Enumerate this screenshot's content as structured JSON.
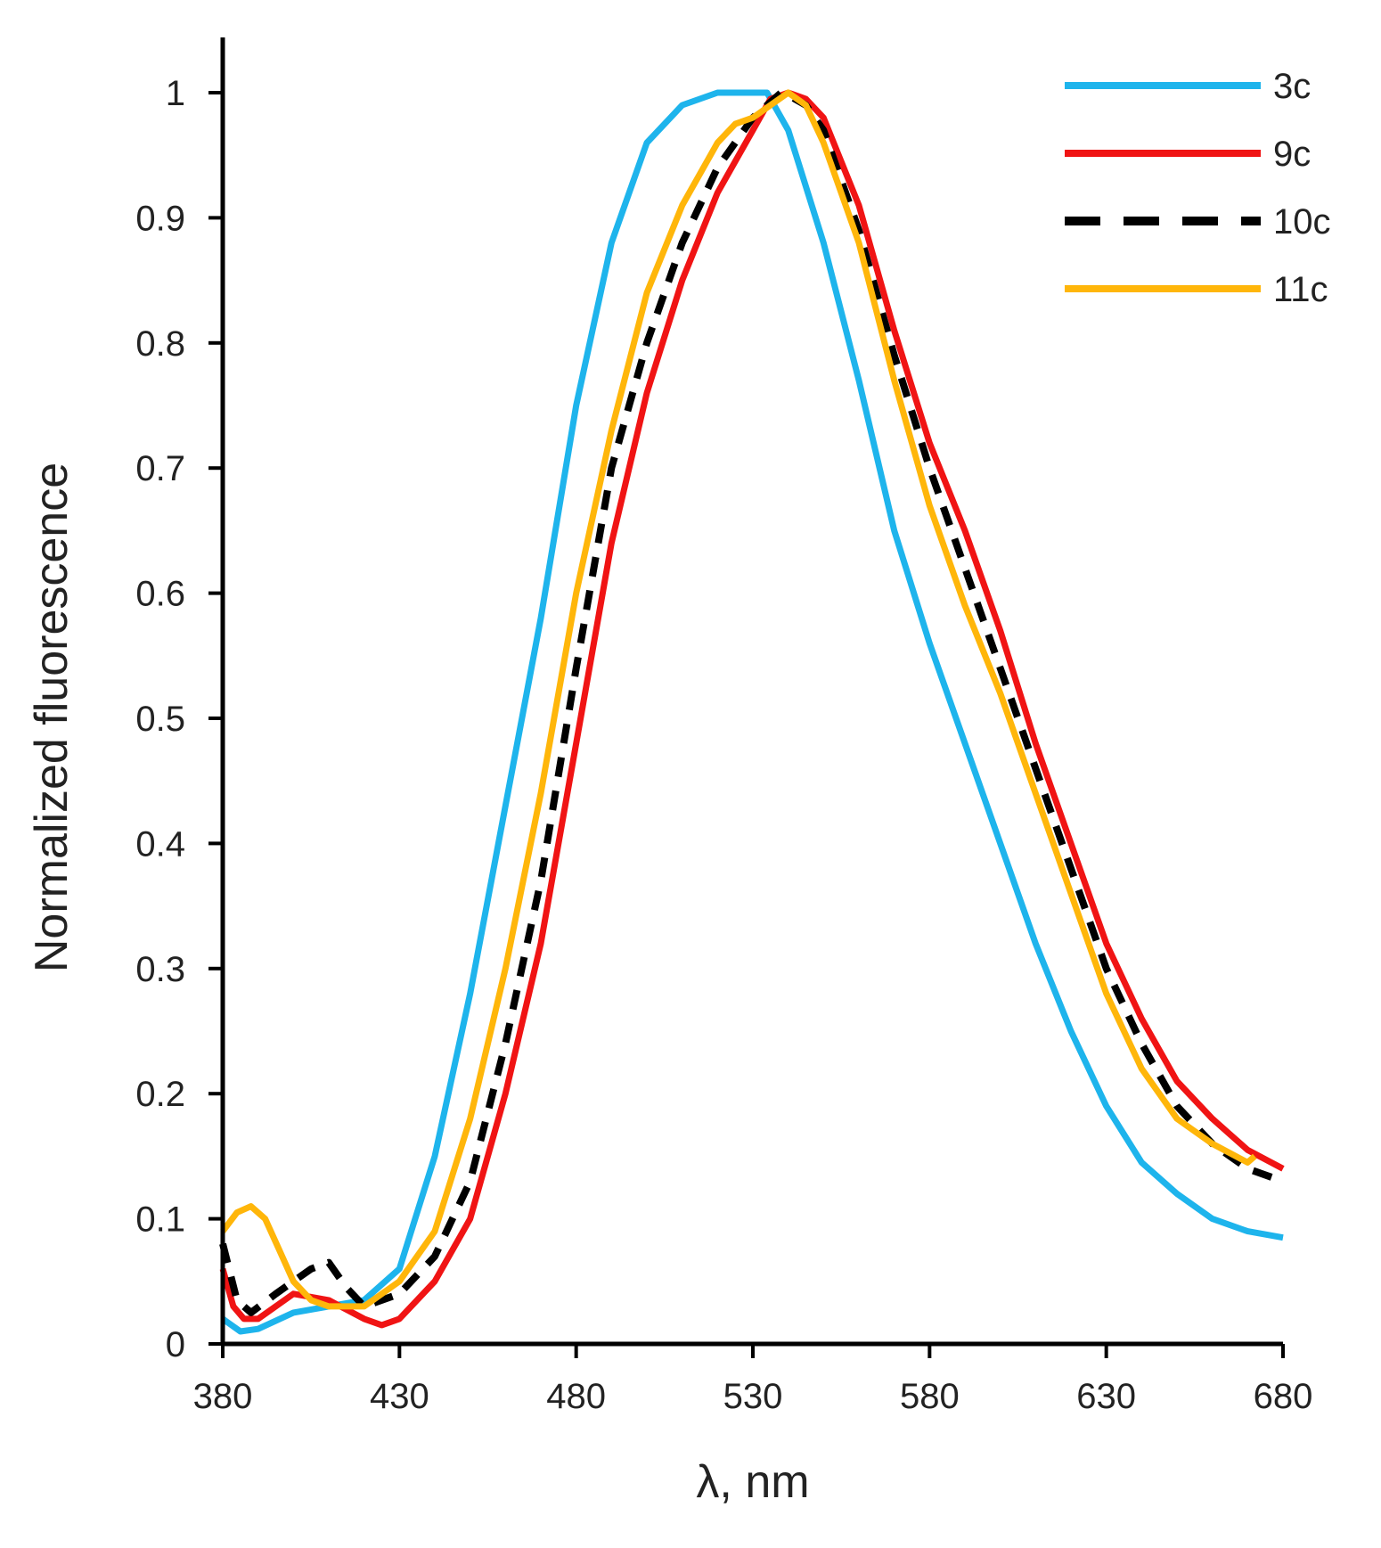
{
  "chart_data": {
    "type": "line",
    "title": "",
    "xlabel": "λ, nm",
    "ylabel": "Normalized fluorescence",
    "xlim": [
      380,
      680
    ],
    "ylim": [
      0,
      1.05
    ],
    "x_ticks": [
      380,
      430,
      480,
      530,
      580,
      630,
      680
    ],
    "x_tick_labels": [
      "380",
      "430",
      "480",
      "530",
      "580",
      "630",
      "680"
    ],
    "y_ticks": [
      0,
      0.1,
      0.2,
      0.3,
      0.4,
      0.5,
      0.6,
      0.7,
      0.8,
      0.9,
      1
    ],
    "y_tick_labels": [
      "0",
      "0.1",
      "0.2",
      "0.3",
      "0.4",
      "0.5",
      "0.6",
      "0.7",
      "0.8",
      "0.9",
      "1"
    ],
    "grid": false,
    "legend_position": "top-right",
    "series": [
      {
        "name": "3c",
        "color": "#1EB4EC",
        "dash": "solid",
        "x": [
          380,
          385,
          390,
          400,
          410,
          420,
          430,
          440,
          450,
          460,
          470,
          480,
          490,
          500,
          510,
          520,
          530,
          534,
          540,
          550,
          560,
          570,
          580,
          590,
          600,
          610,
          620,
          630,
          640,
          650,
          660,
          670,
          680
        ],
        "y": [
          0.02,
          0.01,
          0.012,
          0.025,
          0.03,
          0.035,
          0.06,
          0.15,
          0.28,
          0.43,
          0.58,
          0.75,
          0.88,
          0.96,
          0.99,
          1.0,
          1.0,
          1.0,
          0.97,
          0.88,
          0.77,
          0.65,
          0.56,
          0.48,
          0.4,
          0.32,
          0.25,
          0.19,
          0.145,
          0.12,
          0.1,
          0.09,
          0.085
        ]
      },
      {
        "name": "9c",
        "color": "#F01414",
        "dash": "solid",
        "x": [
          380,
          383,
          386,
          390,
          400,
          410,
          420,
          425,
          430,
          440,
          450,
          460,
          470,
          480,
          490,
          500,
          510,
          520,
          530,
          535,
          540,
          545,
          550,
          560,
          570,
          580,
          590,
          600,
          610,
          620,
          630,
          640,
          650,
          660,
          670,
          680
        ],
        "y": [
          0.06,
          0.03,
          0.02,
          0.02,
          0.04,
          0.035,
          0.02,
          0.015,
          0.02,
          0.05,
          0.1,
          0.2,
          0.32,
          0.48,
          0.64,
          0.76,
          0.85,
          0.92,
          0.97,
          0.995,
          1.0,
          0.995,
          0.98,
          0.91,
          0.81,
          0.72,
          0.65,
          0.57,
          0.48,
          0.4,
          0.32,
          0.26,
          0.21,
          0.18,
          0.155,
          0.14
        ]
      },
      {
        "name": "10c",
        "color": "#000000",
        "dash": "dashed",
        "x": [
          380,
          384,
          388,
          395,
          405,
          410,
          415,
          420,
          430,
          440,
          450,
          460,
          470,
          480,
          490,
          500,
          510,
          520,
          530,
          538,
          540,
          545,
          550,
          560,
          570,
          580,
          590,
          600,
          610,
          620,
          630,
          640,
          650,
          660,
          670,
          680
        ],
        "y": [
          0.08,
          0.035,
          0.025,
          0.04,
          0.06,
          0.065,
          0.045,
          0.03,
          0.04,
          0.07,
          0.13,
          0.24,
          0.37,
          0.54,
          0.7,
          0.8,
          0.88,
          0.94,
          0.98,
          1.0,
          0.998,
          0.99,
          0.97,
          0.89,
          0.79,
          0.7,
          0.62,
          0.54,
          0.46,
          0.38,
          0.3,
          0.24,
          0.19,
          0.16,
          0.14,
          0.13
        ]
      },
      {
        "name": "11c",
        "color": "#FFB60A",
        "dash": "solid",
        "x": [
          380,
          384,
          388,
          392,
          396,
          400,
          405,
          410,
          420,
          430,
          440,
          450,
          460,
          470,
          480,
          490,
          500,
          510,
          520,
          525,
          530,
          535,
          540,
          545,
          550,
          560,
          570,
          580,
          590,
          600,
          610,
          620,
          630,
          640,
          650,
          660,
          670,
          672
        ],
        "y": [
          0.09,
          0.105,
          0.11,
          0.1,
          0.075,
          0.05,
          0.035,
          0.03,
          0.03,
          0.05,
          0.09,
          0.18,
          0.3,
          0.44,
          0.6,
          0.73,
          0.84,
          0.91,
          0.96,
          0.975,
          0.98,
          0.99,
          1.0,
          0.99,
          0.96,
          0.88,
          0.77,
          0.67,
          0.59,
          0.52,
          0.44,
          0.36,
          0.28,
          0.22,
          0.18,
          0.16,
          0.145,
          0.15
        ]
      }
    ]
  }
}
